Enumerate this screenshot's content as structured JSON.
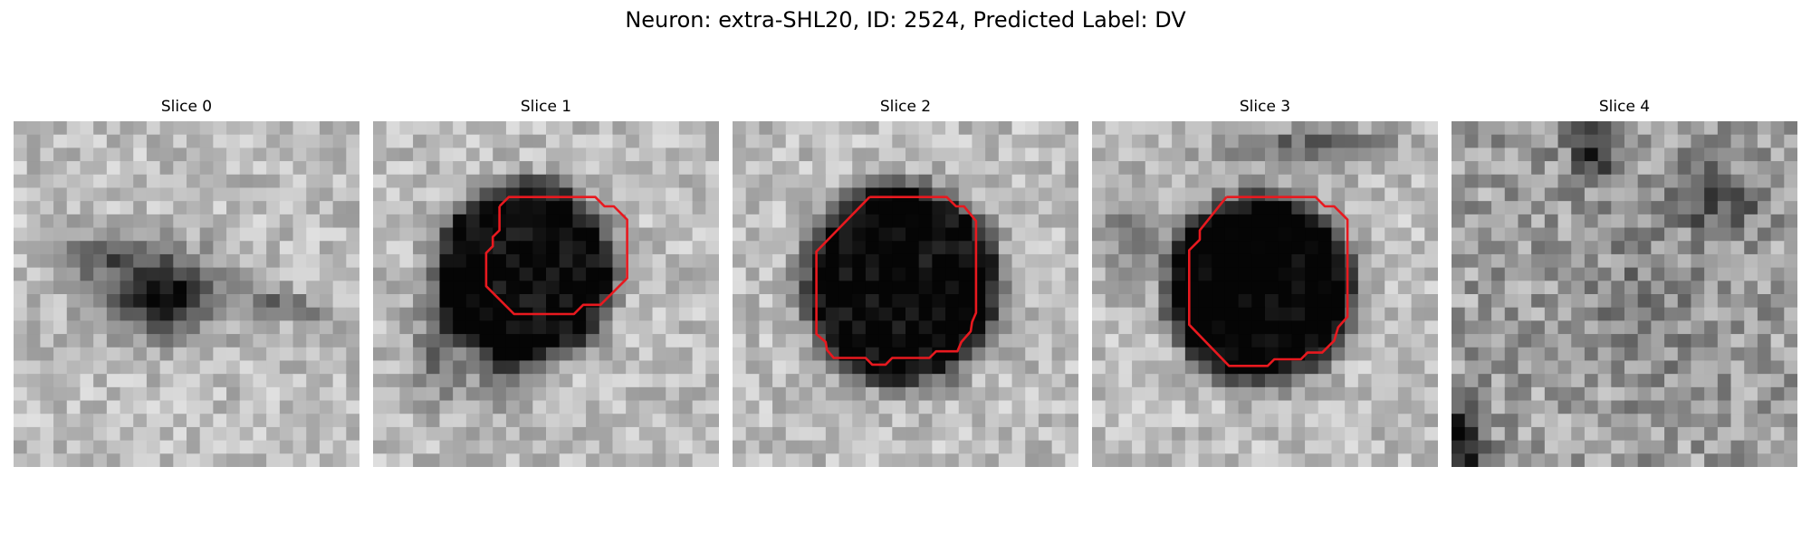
{
  "title": "Neuron: extra-SHL20, ID: 2524, Predicted Label: DV",
  "slices": [
    {
      "label": "Slice 0",
      "has_contour": false
    },
    {
      "label": "Slice 1",
      "has_contour": true
    },
    {
      "label": "Slice 2",
      "has_contour": true
    },
    {
      "label": "Slice 3",
      "has_contour": true
    },
    {
      "label": "Slice 4",
      "has_contour": false
    }
  ],
  "colors": {
    "contour": "#e8191f",
    "background": "#ffffff"
  }
}
